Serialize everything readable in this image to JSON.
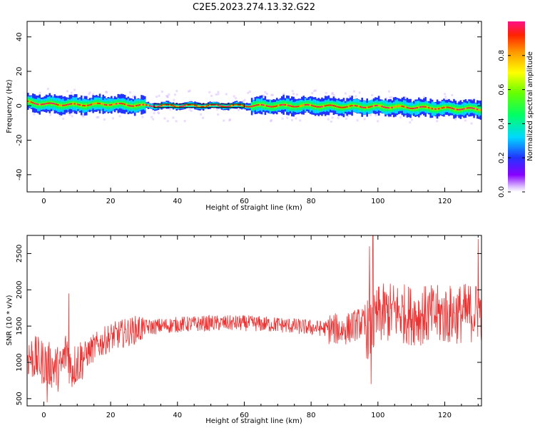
{
  "title": "C2E5.2023.274.13.32.G22",
  "chart_data": [
    {
      "type": "heatmap",
      "xlabel": "Height of straight line (km)",
      "ylabel": "Frequency (Hz)",
      "xlim": [
        -5,
        131
      ],
      "ylim": [
        -50,
        49
      ],
      "xticks": [
        0,
        20,
        40,
        60,
        80,
        100,
        120
      ],
      "yticks": [
        40,
        20,
        0,
        -20,
        -40
      ],
      "colorbar": {
        "label": "Normalized spectral amplitude",
        "range": [
          0.0,
          1.0
        ],
        "ticks": [
          0.0,
          0.2,
          0.4,
          0.6,
          0.8
        ],
        "tick_labels": [
          "0.0",
          "0.2",
          "0.4",
          "0.6",
          "0.8"
        ]
      },
      "signal_center": {
        "x": [
          -5,
          0,
          10,
          20,
          30,
          40,
          50,
          60,
          70,
          80,
          90,
          100,
          110,
          120,
          131
        ],
        "freq": [
          2.0,
          1.0,
          0.5,
          1.0,
          0.0,
          0.0,
          0.0,
          0.0,
          0.0,
          0.0,
          -0.5,
          -0.5,
          -1.0,
          -1.5,
          -2.0
        ]
      },
      "reference_box": {
        "x": [
          33,
          60
        ],
        "freq": [
          -1,
          1
        ]
      },
      "grid": false
    },
    {
      "type": "line",
      "xlabel": "Height of straight line (km)",
      "ylabel": "SNR (10 * v/v)",
      "xlim": [
        -5,
        131
      ],
      "ylim": [
        400,
        2750
      ],
      "xticks": [
        0,
        20,
        40,
        60,
        80,
        100,
        120
      ],
      "yticks": [
        500,
        1000,
        1500,
        2000,
        2500
      ],
      "series": [
        {
          "color": "#ee3333",
          "trend_x": [
            -5,
            0,
            5,
            7,
            8,
            10,
            15,
            20,
            30,
            40,
            50,
            60,
            70,
            80,
            90,
            95,
            98,
            100,
            105,
            110,
            120,
            131
          ],
          "trend_y": [
            1100,
            1000,
            900,
            1200,
            900,
            1000,
            1200,
            1350,
            1480,
            1520,
            1540,
            1540,
            1520,
            1480,
            1450,
            1550,
            1400,
            1650,
            1700,
            1650,
            1650,
            1700
          ],
          "spikes": [
            {
              "x": 7.5,
              "y": 1950
            },
            {
              "x": 98.5,
              "y": 2750
            },
            {
              "x": 98,
              "y": 700
            },
            {
              "x": 97.5,
              "y": 2600
            },
            {
              "x": 130,
              "y": 2700
            },
            {
              "x": 1,
              "y": 450
            }
          ]
        }
      ],
      "grid": false
    }
  ]
}
